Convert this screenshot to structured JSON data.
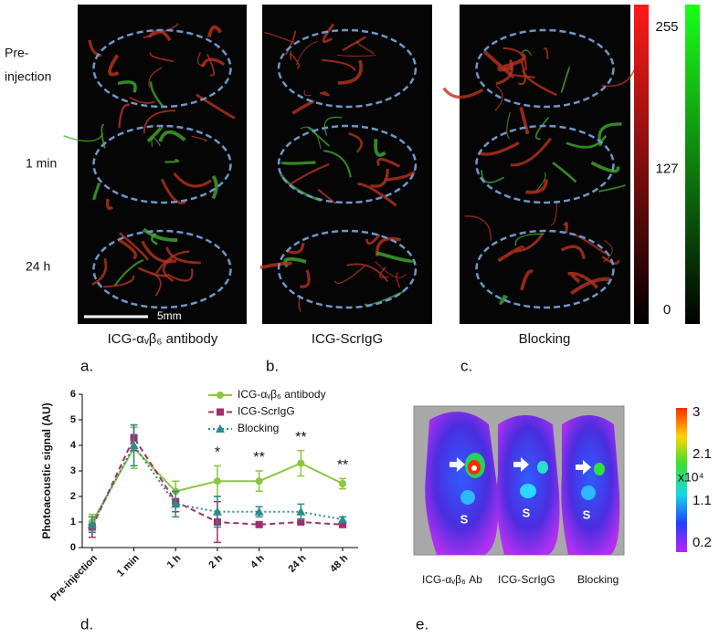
{
  "letters": [
    "a.",
    "b.",
    "c.",
    "d.",
    "e."
  ],
  "panels_abc": {
    "row_labels": [
      [
        "Pre-",
        "injection"
      ],
      "1 min",
      "24 h"
    ],
    "scale_bar": "5mm",
    "captions": [
      "ICG-αᵥβ₆ antibody",
      "ICG-ScrIgG",
      "Blocking"
    ],
    "colorbar": {
      "lim": [
        0,
        255
      ],
      "ticks": [
        0,
        127,
        255
      ],
      "colors": [
        "#ff1a1a",
        "#1aff1a"
      ]
    }
  },
  "chart_data": {
    "type": "line",
    "ylabel": "Photoacoustic signal (AU)",
    "categories": [
      "Pre-injection",
      "1 min",
      "1 h",
      "2 h",
      "4 h",
      "24 h",
      "48 h"
    ],
    "ylim": [
      0,
      6
    ],
    "yticks": [
      0,
      1,
      2,
      3,
      4,
      5,
      6
    ],
    "series": [
      {
        "name": "ICG-αᵥβ₆ antibody",
        "color": "#8cc63f",
        "marker": "circle",
        "line_style": "solid",
        "values": [
          1.0,
          3.9,
          2.2,
          2.6,
          2.6,
          3.3,
          2.5
        ],
        "errors": [
          0.3,
          0.8,
          0.4,
          0.6,
          0.4,
          0.5,
          0.2
        ]
      },
      {
        "name": "ICG-ScrIgG",
        "color": "#a0306a",
        "marker": "square",
        "line_style": "dashed",
        "values": [
          0.8,
          4.3,
          1.8,
          1.0,
          0.9,
          1.0,
          0.9
        ],
        "errors": [
          0.4,
          0.5,
          0.4,
          0.8,
          0.1,
          0.1,
          0.1
        ]
      },
      {
        "name": "Blocking",
        "color": "#2a8c8c",
        "marker": "triangle",
        "line_style": "dotted",
        "values": [
          0.9,
          4.0,
          1.7,
          1.4,
          1.4,
          1.4,
          1.1
        ],
        "errors": [
          0.3,
          0.8,
          0.5,
          0.6,
          0.2,
          0.3,
          0.1
        ]
      }
    ],
    "annotations": [
      {
        "text": "*",
        "category": 3
      },
      {
        "text": "**",
        "category": 4
      },
      {
        "text": "**",
        "category": 5
      },
      {
        "text": "**",
        "category": 6
      }
    ]
  },
  "panel_e": {
    "captions": [
      "ICG-αᵥβ₆ Ab",
      "ICG-ScrIgG",
      "Blocking"
    ],
    "image_labels": [
      "S",
      "S",
      "S"
    ],
    "colorbar": {
      "lim": [
        0.2,
        3
      ],
      "ticks": [
        0.2,
        1.1,
        2.1,
        3
      ],
      "unit": "x10⁴"
    }
  }
}
